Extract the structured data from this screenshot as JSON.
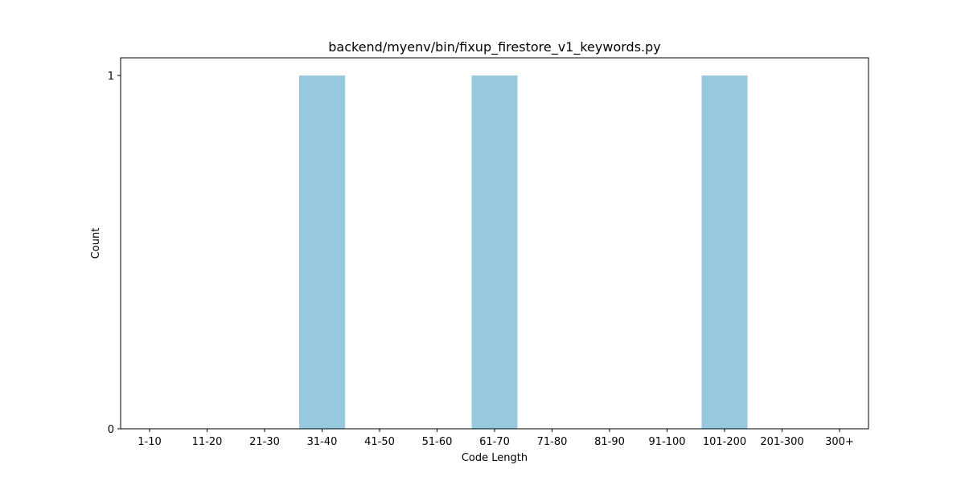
{
  "chart_data": {
    "type": "bar",
    "title": "backend/myenv/bin/fixup_firestore_v1_keywords.py",
    "xlabel": "Code Length",
    "ylabel": "Count",
    "categories": [
      "1-10",
      "11-20",
      "21-30",
      "31-40",
      "41-50",
      "51-60",
      "61-70",
      "71-80",
      "81-90",
      "91-100",
      "101-200",
      "201-300",
      "300+"
    ],
    "values": [
      0,
      0,
      0,
      1,
      0,
      0,
      1,
      0,
      0,
      0,
      1,
      0,
      0
    ],
    "ylim": [
      0,
      1.05
    ],
    "yticks": [
      0,
      1
    ],
    "bar_color": "#96c9dd",
    "grid": false,
    "legend": "none"
  }
}
